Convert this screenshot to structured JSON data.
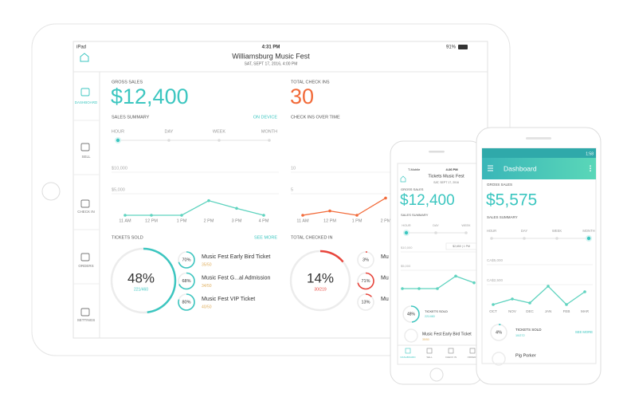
{
  "ipad": {
    "status": {
      "device": "iPad",
      "time": "4:31 PM",
      "battery": "91%"
    },
    "header": {
      "title": "Williamsburg Music Fest",
      "subtitle": "SAT, SEPT 17, 2016, 4:00 PM"
    },
    "sidebar": [
      "DASHBOARD",
      "SELL",
      "CHECK IN",
      "ORDERS",
      "SETTINGS"
    ],
    "gross_sales": {
      "label": "GROSS SALES",
      "value": "$12,400"
    },
    "total_check_ins": {
      "label": "TOTAL CHECK INS",
      "value": "30"
    },
    "sales_summary": {
      "label": "SALES SUMMARY",
      "link": "ON DEVICE",
      "periods": [
        "HOUR",
        "DAY",
        "WEEK",
        "MONTH"
      ],
      "selected": "HOUR",
      "chart": {
        "ylim": [
          0,
          10000
        ],
        "yticks": [
          {
            "value": 10000,
            "label": "$10,000"
          },
          {
            "value": 5000,
            "label": "$5,000"
          }
        ],
        "categories": [
          "11 AM",
          "12 PM",
          "1 PM",
          "2 PM",
          "3 PM",
          "4 PM"
        ],
        "values": [
          0,
          0,
          0,
          3400,
          1600,
          0
        ]
      }
    },
    "check_ins_over_time": {
      "label": "CHECK INS OVER TIME",
      "chart": {
        "ylim": [
          0,
          10
        ],
        "yticks": [
          10,
          5
        ],
        "categories": [
          "11 AM",
          "12 PM",
          "1 PM",
          "2 PM"
        ],
        "values": [
          0,
          1,
          0,
          4
        ]
      }
    },
    "tickets_sold": {
      "label": "TICKETS SOLD",
      "link": "SEE MORE",
      "percent": 48,
      "percent_label": "48%",
      "count": "221/460",
      "items": [
        {
          "percent": 70,
          "percent_label": "70%",
          "name": "Music Fest Early Bird Ticket",
          "count": "35/50"
        },
        {
          "percent": 68,
          "percent_label": "68%",
          "name": "Music Fest G...al Admission",
          "count": "34/50"
        },
        {
          "percent": 80,
          "percent_label": "80%",
          "name": "Music Fest VIP Ticket",
          "count": "40/50"
        }
      ]
    },
    "total_checked_in": {
      "label": "TOTAL CHECKED IN",
      "percent": 14,
      "percent_label": "14%",
      "count": "30/219",
      "items": [
        {
          "percent": 3,
          "percent_label": "3%",
          "name": "Mu"
        },
        {
          "percent": 71,
          "percent_label": "71%",
          "name": "Mu"
        },
        {
          "percent": 13,
          "percent_label": "13%",
          "name": "Mu"
        }
      ]
    }
  },
  "iphone": {
    "status": {
      "carrier": "T-Mobile",
      "time": "4:26 PM"
    },
    "header": {
      "title": "Tickets Music Fest",
      "subtitle": "SAT, SEPT 17, 2016"
    },
    "gross_sales": {
      "label": "GROSS SALES",
      "value": "$12,400"
    },
    "sales_summary": {
      "label": "SALES SUMMARY",
      "periods": [
        "HOUR",
        "DAY",
        "WEEK"
      ],
      "selected": "HOUR",
      "tooltip": "$2,650 | 1 PM",
      "chart": {
        "ylim": [
          0,
          10000
        ],
        "yticks": [
          {
            "value": 10000,
            "label": "$10,000"
          },
          {
            "value": 5000,
            "label": "$5,000"
          }
        ],
        "values": [
          0,
          0,
          0,
          3400,
          1600
        ]
      }
    },
    "tickets_sold": {
      "label": "TICKETS SOLD",
      "percent": 48,
      "percent_label": "48%",
      "count": "221/460",
      "item": {
        "name": "Music Fest Early Bird Ticket",
        "count": "35/50"
      }
    },
    "tabs": [
      "DASHBOARD",
      "SELL",
      "CHECK IN",
      "ORDERS"
    ]
  },
  "android": {
    "status": {
      "time": "1:58"
    },
    "app_bar": {
      "title": "Dashboard"
    },
    "gross_sales": {
      "label": "GROSS SALES",
      "value": "$5,575"
    },
    "sales_summary": {
      "label": "SALES SUMMARY",
      "periods": [
        "HOUR",
        "DAY",
        "WEEK",
        "MONTH"
      ],
      "selected": "MONTH",
      "chart": {
        "ylim": [
          0,
          5000
        ],
        "yticks": [
          {
            "value": 5000,
            "label": "CA$5,000"
          },
          {
            "value": 2500,
            "label": "CA$2,500"
          }
        ],
        "categories": [
          "OCT",
          "NOV",
          "DEC",
          "JAN",
          "FEB",
          "MAR"
        ],
        "values": [
          0,
          700,
          200,
          2300,
          0,
          1600
        ]
      }
    },
    "tickets_sold": {
      "label": "TICKETS SOLD",
      "link": "SEE MORE",
      "percent": 4,
      "percent_label": "4%",
      "count": "10/272"
    },
    "items": [
      {
        "name": "Pig Porker"
      }
    ]
  }
}
